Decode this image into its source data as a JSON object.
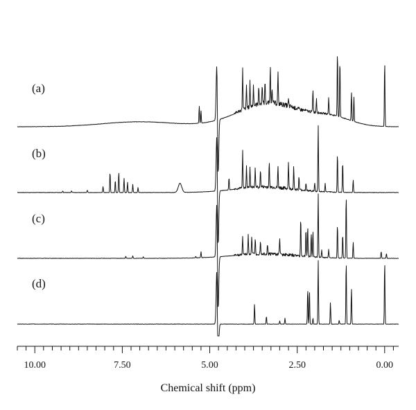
{
  "chart_data": {
    "type": "line",
    "title": "",
    "xlabel": "Chemical shift (ppm)",
    "ylabel": "",
    "x_reversed": true,
    "xlim": [
      10.5,
      -0.4
    ],
    "x_ticks": [
      10.0,
      7.5,
      5.0,
      2.5,
      0.0
    ],
    "x_tick_labels": [
      "10.00",
      "7.50",
      "5.00",
      "2.50",
      "0.00"
    ],
    "minor_tick_step": 0.25,
    "grid": false,
    "series": [
      {
        "name": "(a)",
        "baseline": "broad",
        "peaks": [
          {
            "ppm": 5.3,
            "h": 0.42
          },
          {
            "ppm": 5.25,
            "h": 0.3
          },
          {
            "ppm": 4.06,
            "h": 1.0
          },
          {
            "ppm": 3.95,
            "h": 0.55
          },
          {
            "ppm": 3.85,
            "h": 0.6
          },
          {
            "ppm": 3.75,
            "h": 0.5
          },
          {
            "ppm": 3.6,
            "h": 0.45
          },
          {
            "ppm": 3.5,
            "h": 0.5
          },
          {
            "ppm": 3.42,
            "h": 0.55
          },
          {
            "ppm": 3.27,
            "h": 0.9
          },
          {
            "ppm": 3.22,
            "h": 0.4
          },
          {
            "ppm": 3.05,
            "h": 0.75
          },
          {
            "ppm": 2.75,
            "h": 0.15
          },
          {
            "ppm": 2.05,
            "h": 0.55
          },
          {
            "ppm": 1.95,
            "h": 0.35
          },
          {
            "ppm": 1.6,
            "h": 0.4
          },
          {
            "ppm": 1.35,
            "h": 1.6
          },
          {
            "ppm": 1.28,
            "h": 1.4
          },
          {
            "ppm": 0.95,
            "h": 0.7
          },
          {
            "ppm": 0.88,
            "h": 0.6
          },
          {
            "ppm": 0.0,
            "h": 1.6
          }
        ]
      },
      {
        "name": "(b)",
        "baseline": "flat",
        "peaks": [
          {
            "ppm": 9.2,
            "h": 0.04
          },
          {
            "ppm": 8.95,
            "h": 0.04
          },
          {
            "ppm": 8.5,
            "h": 0.06
          },
          {
            "ppm": 8.05,
            "h": 0.15
          },
          {
            "ppm": 7.85,
            "h": 0.5
          },
          {
            "ppm": 7.7,
            "h": 0.3
          },
          {
            "ppm": 7.6,
            "h": 0.5
          },
          {
            "ppm": 7.45,
            "h": 0.35
          },
          {
            "ppm": 7.35,
            "h": 0.25
          },
          {
            "ppm": 7.2,
            "h": 0.2
          },
          {
            "ppm": 7.05,
            "h": 0.12
          },
          {
            "ppm": 5.85,
            "h": 0.22
          },
          {
            "ppm": 4.45,
            "h": 0.3
          },
          {
            "ppm": 4.06,
            "h": 0.9
          },
          {
            "ppm": 3.95,
            "h": 0.55
          },
          {
            "ppm": 3.85,
            "h": 0.5
          },
          {
            "ppm": 3.7,
            "h": 0.45
          },
          {
            "ppm": 3.55,
            "h": 0.4
          },
          {
            "ppm": 3.3,
            "h": 0.6
          },
          {
            "ppm": 3.05,
            "h": 0.5
          },
          {
            "ppm": 2.75,
            "h": 0.65
          },
          {
            "ppm": 2.6,
            "h": 0.55
          },
          {
            "ppm": 2.45,
            "h": 0.3
          },
          {
            "ppm": 2.25,
            "h": 0.2
          },
          {
            "ppm": 2.0,
            "h": 0.2
          },
          {
            "ppm": 1.9,
            "h": 1.6
          },
          {
            "ppm": 1.7,
            "h": 0.2
          },
          {
            "ppm": 1.35,
            "h": 0.95
          },
          {
            "ppm": 1.2,
            "h": 0.75
          },
          {
            "ppm": 0.9,
            "h": 0.3
          }
        ]
      },
      {
        "name": "(c)",
        "baseline": "flat",
        "peaks": [
          {
            "ppm": 7.4,
            "h": 0.05
          },
          {
            "ppm": 7.2,
            "h": 0.06
          },
          {
            "ppm": 6.9,
            "h": 0.04
          },
          {
            "ppm": 5.4,
            "h": 0.04
          },
          {
            "ppm": 5.25,
            "h": 0.15
          },
          {
            "ppm": 4.06,
            "h": 0.45
          },
          {
            "ppm": 3.9,
            "h": 0.5
          },
          {
            "ppm": 3.8,
            "h": 0.45
          },
          {
            "ppm": 3.7,
            "h": 0.4
          },
          {
            "ppm": 3.55,
            "h": 0.35
          },
          {
            "ppm": 3.35,
            "h": 0.25
          },
          {
            "ppm": 3.0,
            "h": 0.4
          },
          {
            "ppm": 2.4,
            "h": 0.95
          },
          {
            "ppm": 2.25,
            "h": 0.7
          },
          {
            "ppm": 2.2,
            "h": 0.75
          },
          {
            "ppm": 2.1,
            "h": 0.6
          },
          {
            "ppm": 2.05,
            "h": 0.65
          },
          {
            "ppm": 1.9,
            "h": 1.6
          },
          {
            "ppm": 1.8,
            "h": 0.2
          },
          {
            "ppm": 1.6,
            "h": 0.2
          },
          {
            "ppm": 1.35,
            "h": 0.85
          },
          {
            "ppm": 1.2,
            "h": 0.6
          },
          {
            "ppm": 1.1,
            "h": 1.6
          },
          {
            "ppm": 0.9,
            "h": 0.4
          },
          {
            "ppm": 0.1,
            "h": 0.18
          },
          {
            "ppm": -0.05,
            "h": 0.12
          }
        ]
      },
      {
        "name": "(d)",
        "baseline": "flat",
        "peaks": [
          {
            "ppm": 3.72,
            "h": 0.5
          },
          {
            "ppm": 3.38,
            "h": 0.2
          },
          {
            "ppm": 3.0,
            "h": 0.08
          },
          {
            "ppm": 2.85,
            "h": 0.15
          },
          {
            "ppm": 2.2,
            "h": 0.9
          },
          {
            "ppm": 2.15,
            "h": 0.85
          },
          {
            "ppm": 2.05,
            "h": 0.15
          },
          {
            "ppm": 1.9,
            "h": 1.6
          },
          {
            "ppm": 1.55,
            "h": 0.55
          },
          {
            "ppm": 1.3,
            "h": 0.1
          },
          {
            "ppm": 1.1,
            "h": 1.6
          },
          {
            "ppm": 0.95,
            "h": 0.9
          },
          {
            "ppm": 0.0,
            "h": 1.6
          }
        ]
      }
    ],
    "solvent_peak": {
      "ppm": 4.78,
      "note": "dispersive water signal spanning all spectra"
    }
  }
}
